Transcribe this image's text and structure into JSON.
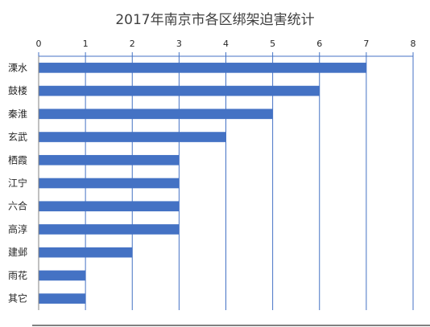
{
  "chart_data": {
    "type": "bar",
    "orientation": "horizontal",
    "title": "2017年南京市各区绑架迫害统计",
    "categories": [
      "溧水",
      "鼓楼",
      "秦淮",
      "玄武",
      "栖霞",
      "江宁",
      "六合",
      "高淳",
      "建邺",
      "雨花",
      "其它"
    ],
    "values": [
      7,
      6,
      5,
      4,
      3,
      3,
      3,
      3,
      2,
      1,
      1
    ],
    "xlim": [
      0,
      8
    ],
    "ticks": [
      "0",
      "1",
      "2",
      "3",
      "4",
      "5",
      "6",
      "7",
      "8"
    ],
    "x_axis_position": "top",
    "grid": true,
    "bar_color": "#4472C4"
  }
}
